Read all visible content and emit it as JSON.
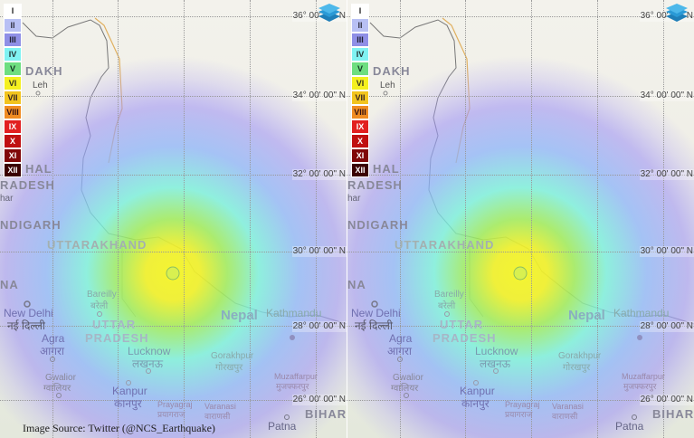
{
  "legend": {
    "title": "",
    "items": [
      {
        "label": "I",
        "color": "#ffffff",
        "text": "#222"
      },
      {
        "label": "II",
        "color": "#b8c0f4",
        "text": "#334"
      },
      {
        "label": "III",
        "color": "#8f8fe6",
        "text": "#223"
      },
      {
        "label": "IV",
        "color": "#80f2f2",
        "text": "#233"
      },
      {
        "label": "V",
        "color": "#6ede80",
        "text": "#132"
      },
      {
        "label": "VI",
        "color": "#f4f020",
        "text": "#332"
      },
      {
        "label": "VII",
        "color": "#f2c41e",
        "text": "#322"
      },
      {
        "label": "VIII",
        "color": "#f08c22",
        "text": "#311"
      },
      {
        "label": "IX",
        "color": "#e22020",
        "text": "#fff"
      },
      {
        "label": "X",
        "color": "#c01010",
        "text": "#fff"
      },
      {
        "label": "XI",
        "color": "#800808",
        "text": "#fff"
      },
      {
        "label": "XII",
        "color": "#3a0202",
        "text": "#fff"
      }
    ]
  },
  "latitudes": [
    "36° 00' 00\" N",
    "34° 00' 00\" N",
    "32° 00' 00\" N",
    "30° 00' 00\" N",
    "28° 00' 00\" N",
    "26° 00' 00\" N"
  ],
  "places": {
    "ladakh": "DAKH",
    "leh": "Leh",
    "himachal": "HAL",
    "pradesh": "RADESH",
    "har": "har",
    "chandigarh": "NDIGARH",
    "uttarakhand": "UTTARAKHAND",
    "haryana": "NA",
    "new_delhi": "New Delhi",
    "new_delhi_hi": "नई दिल्ली",
    "bareilly": "Bareilly",
    "bareilly_hi": "बरेली",
    "uttar": "UTTAR",
    "up_pradesh": "PRADESH",
    "agra": "Agra",
    "agra_hi": "आगरा",
    "lucknow": "Lucknow",
    "lucknow_hi": "लखनऊ",
    "gorakhpur": "Gorakhpur",
    "gorakhpur_hi": "गोरखपुर",
    "nepal": "Nepal",
    "kathmandu": "Kathmandu",
    "gwalior": "Gwalior",
    "gwalior_hi": "ग्वालियर",
    "kanpur": "Kanpur",
    "kanpur_hi": "कानपुर",
    "prayagraj": "Prayagraj",
    "prayagraj_hi": "प्रयागराज",
    "varanasi": "Varanasi",
    "varanasi_hi": "वाराणसी",
    "muzaffarpur": "Muzaffarpur",
    "muzaffarpur_hi": "मुजफ्फरपुर",
    "bihar": "BIHAR",
    "patna": "Patna"
  },
  "icons": {
    "layers": "layers-icon",
    "epicenter": "epicenter-marker"
  },
  "colors": {
    "epicenter_core": "#f4f020",
    "heat_outer": "#a0a0f4"
  },
  "caption": "Image Source:   Twitter (@NCS_Earthquake)"
}
